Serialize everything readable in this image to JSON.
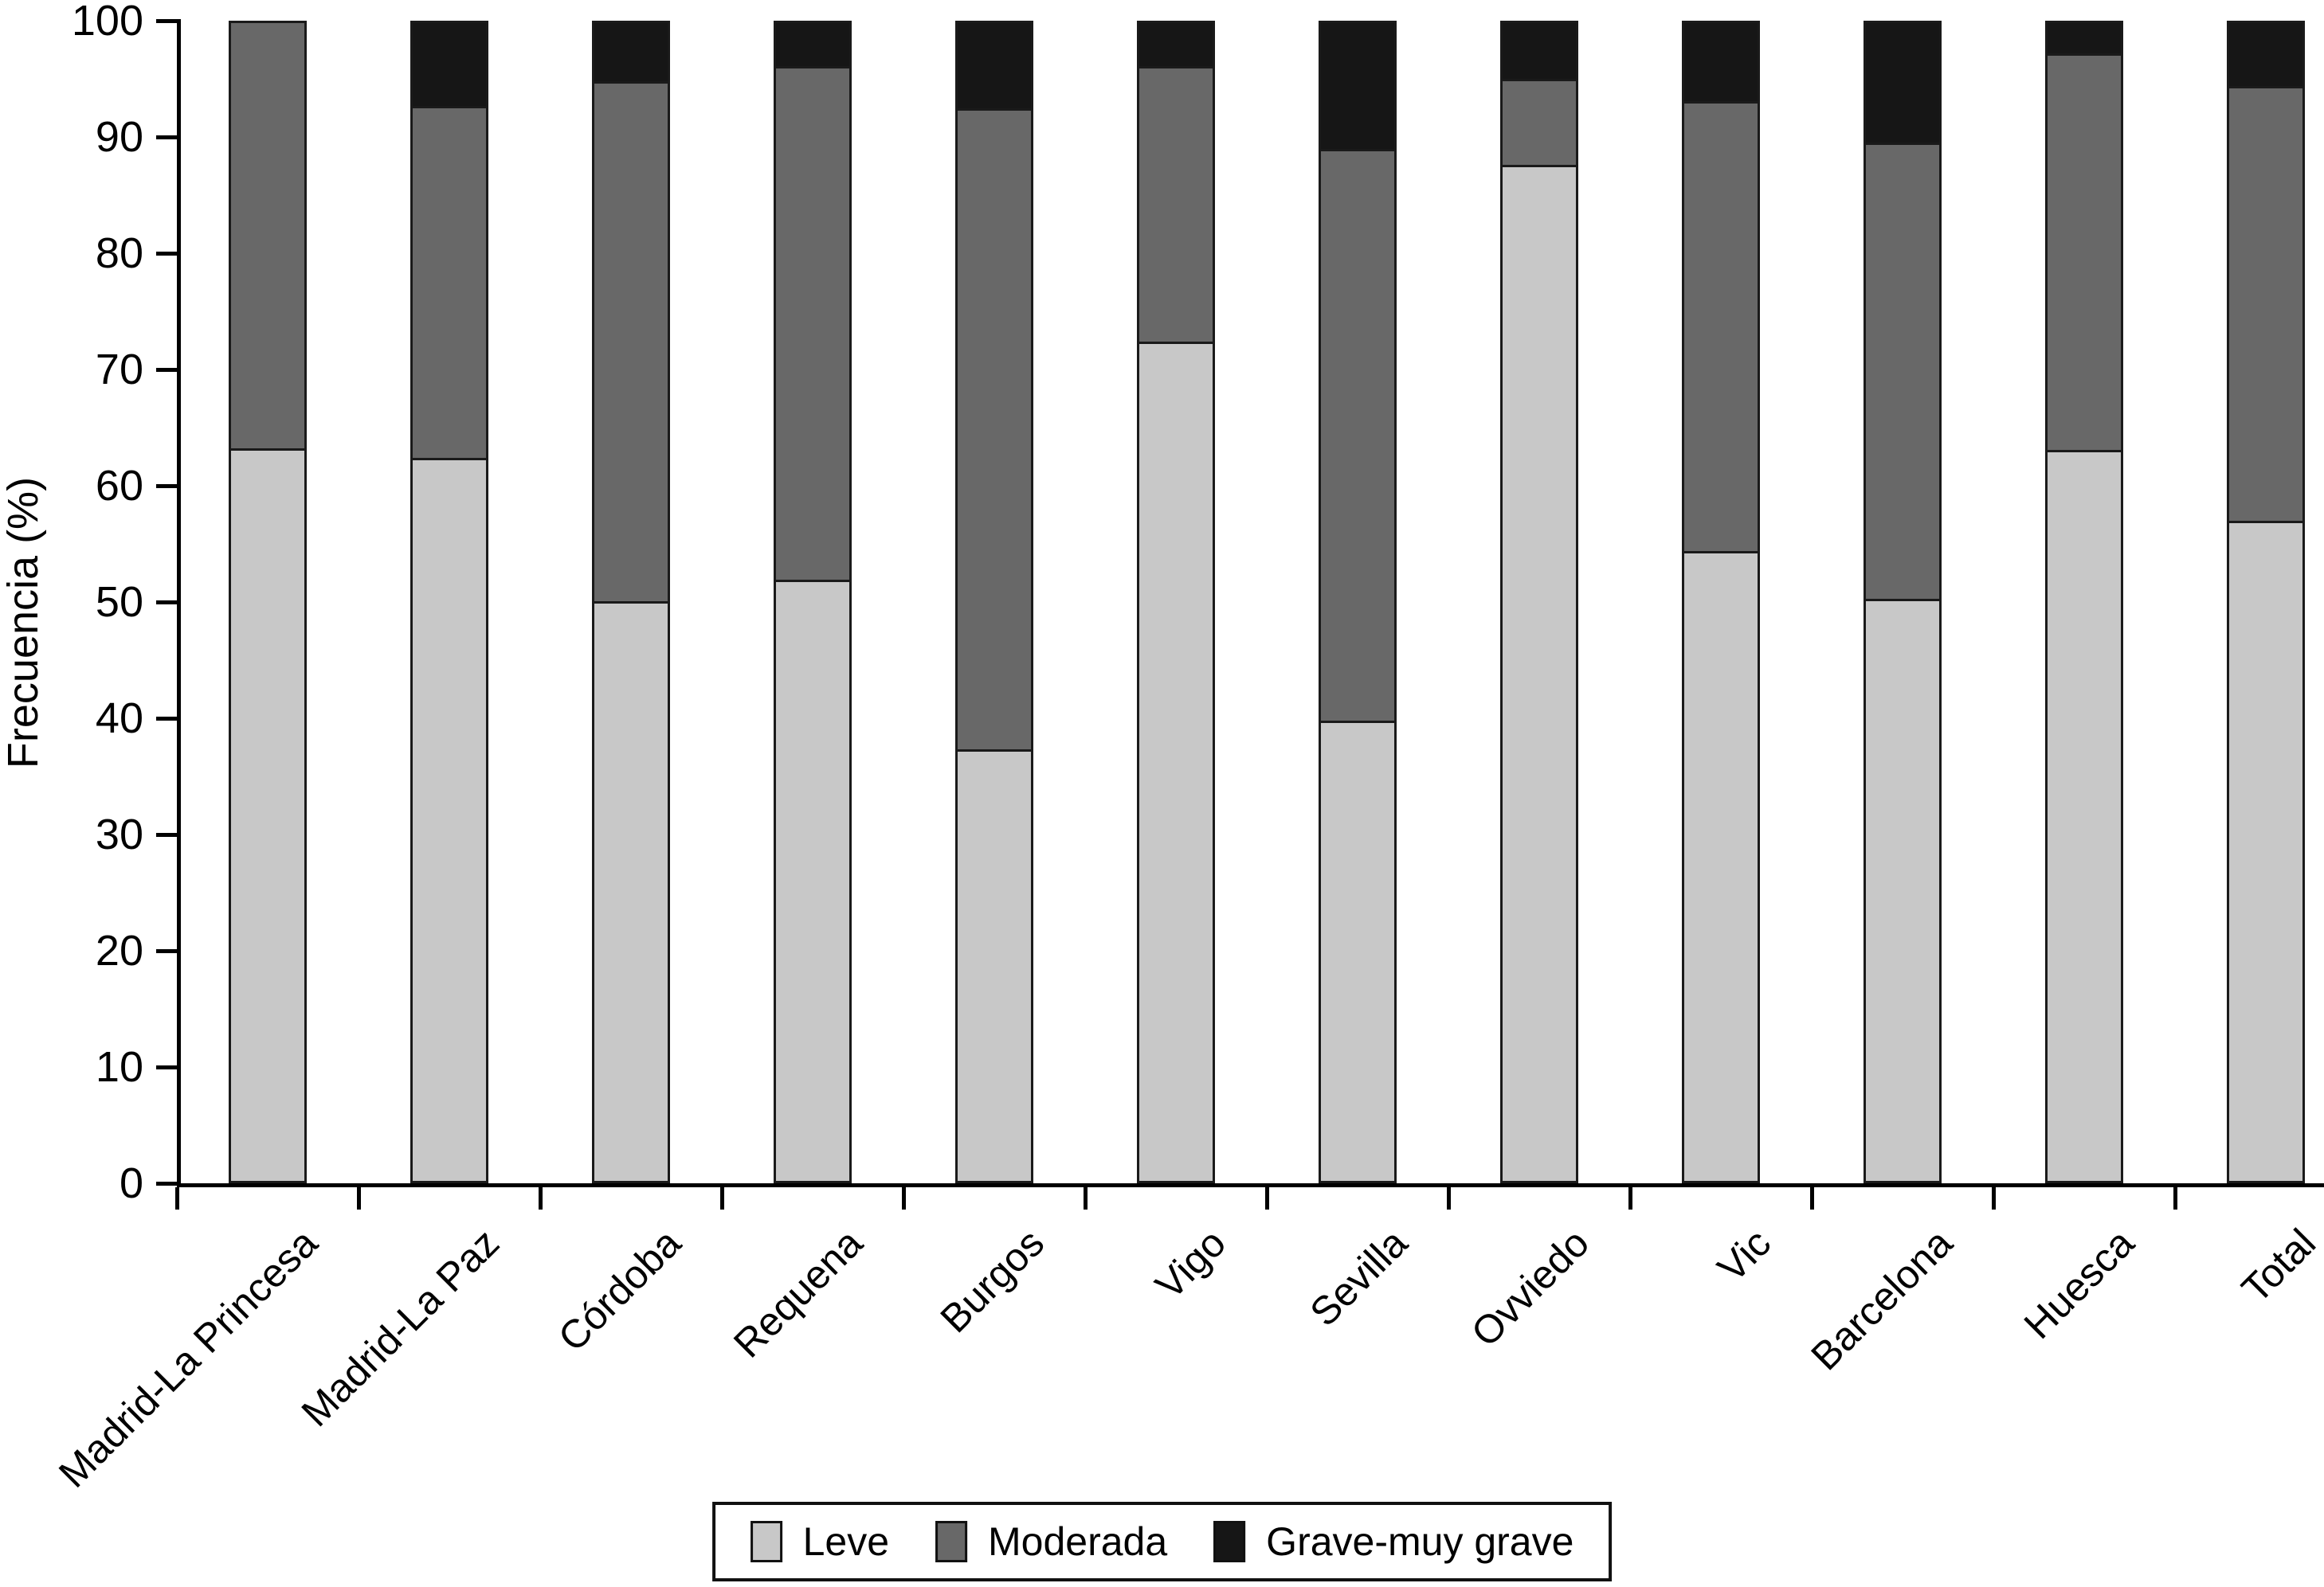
{
  "figure": {
    "background": "#ffffff",
    "outline_color": "#1a1a1a",
    "axis_color": "#000000"
  },
  "chart_data": {
    "type": "bar",
    "stacked": true,
    "title": "",
    "xlabel": "",
    "ylabel": "Frecuencia (%)",
    "ylim": [
      0,
      100
    ],
    "yticks": [
      0,
      10,
      20,
      30,
      40,
      50,
      60,
      70,
      80,
      90,
      100
    ],
    "grid": false,
    "legend_position": "bottom-center",
    "categories": [
      "Madrid-La Princesa",
      "Madrid-La Paz",
      "Córdoba",
      "Requena",
      "Burgos",
      "Vigo",
      "Sevilla",
      "Ovviedo",
      "Vic",
      "Barcelona",
      "Huesca",
      "Total"
    ],
    "series": [
      {
        "name": "Leve",
        "color": "#c8c8c8",
        "values": [
          63.2,
          62.4,
          50.1,
          51.9,
          37.3,
          72.4,
          39.8,
          87.6,
          54.4,
          50.3,
          63.1,
          57.0
        ]
      },
      {
        "name": "Moderada",
        "color": "#686868",
        "values": [
          36.8,
          30.3,
          44.7,
          44.2,
          55.2,
          23.7,
          49.2,
          7.4,
          38.7,
          39.2,
          34.1,
          37.4
        ]
      },
      {
        "name": "Grave-muy grave",
        "color": "#161616",
        "values": [
          0,
          7.3,
          5.2,
          3.9,
          7.5,
          3.9,
          11.0,
          5.0,
          6.9,
          10.5,
          2.8,
          5.6
        ]
      }
    ]
  }
}
